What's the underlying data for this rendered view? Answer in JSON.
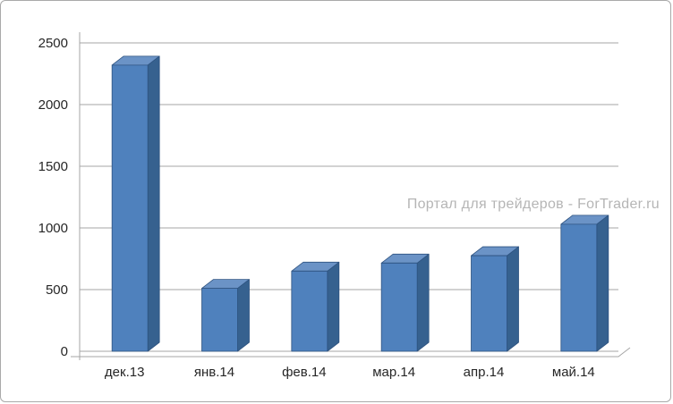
{
  "watermark": {
    "text": "Портал для трейдеров - ForTrader.ru"
  },
  "chart_data": {
    "type": "bar",
    "style": "3d-column",
    "title": "",
    "xlabel": "",
    "ylabel": "",
    "categories": [
      "дек.13",
      "янв.14",
      "фев.14",
      "мар.14",
      "апр.14",
      "май.14"
    ],
    "values": [
      2320,
      510,
      650,
      715,
      775,
      1030
    ],
    "ylim": [
      0,
      2500
    ],
    "ytick_step": 500,
    "yticks": [
      "0",
      "500",
      "1000",
      "1500",
      "2000",
      "2500"
    ],
    "grid": true,
    "legend": "none",
    "colors": {
      "bar_front": "#4F81BD",
      "bar_top": "#6B93C6",
      "bar_side": "#36618F",
      "bar_outline": "#2E5380",
      "grid": "#A6A6A6",
      "axis_text": "#262626",
      "watermark": "#A9A9A9"
    }
  }
}
